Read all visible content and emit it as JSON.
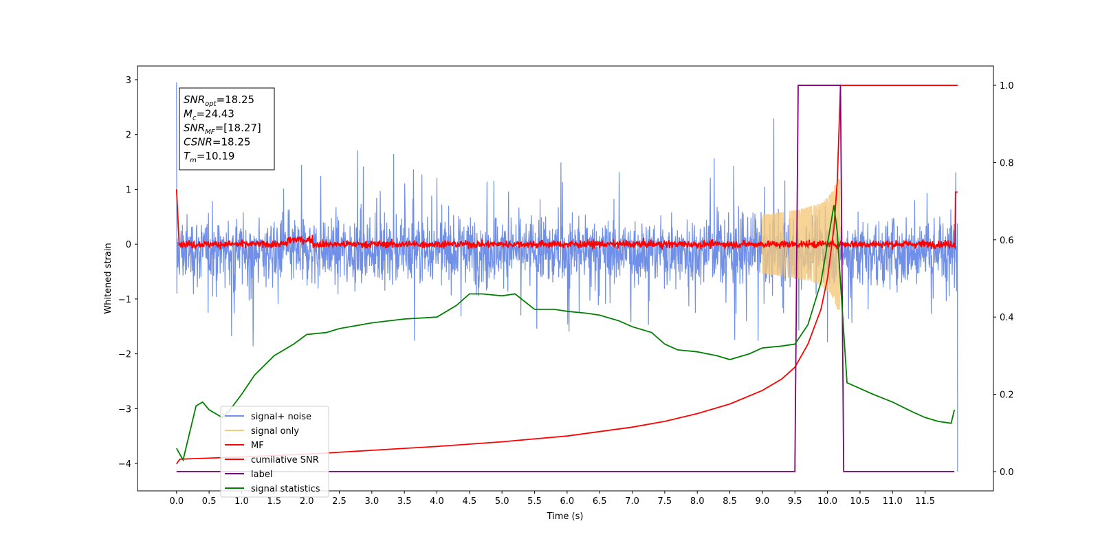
{
  "chart_data": {
    "type": "line",
    "xlabel": "Time (s)",
    "ylabel": "Whitened strain",
    "xlim": [
      -0.6,
      12.55
    ],
    "ylim": [
      -4.5,
      3.25
    ],
    "y2lim": [
      -0.05,
      1.05
    ],
    "x_ticks": [
      "0.0",
      "0.5",
      "1.0",
      "1.5",
      "2.0",
      "2.5",
      "3.0",
      "3.5",
      "4.0",
      "4.5",
      "5.0",
      "5.5",
      "6.0",
      "6.5",
      "7.0",
      "7.5",
      "8.0",
      "8.5",
      "9.0",
      "9.5",
      "10.0",
      "10.5",
      "11.0",
      "11.5"
    ],
    "y_ticks": [
      "3",
      "2",
      "1",
      "0",
      "−1",
      "−2",
      "−3",
      "−4"
    ],
    "y2_ticks": [
      "1.0",
      "0.8",
      "0.6",
      "0.4",
      "0.2",
      "0.0"
    ],
    "grid": false,
    "legend_position": "lower-left",
    "annotation": [
      {
        "label": "SNR",
        "sub": "opt",
        "value": "=18.25"
      },
      {
        "label": "M",
        "sub": "c",
        "value": "=24.43"
      },
      {
        "label": "SNR",
        "sub": "MF",
        "value": "=[18.27]"
      },
      {
        "label": "CSNR",
        "sub": "",
        "value": "=18.25"
      },
      {
        "label": "T",
        "sub": "m",
        "value": "=10.19"
      }
    ],
    "series": [
      {
        "name": "signal+ noise",
        "color": "#6f8fe8",
        "axis": "left",
        "kind": "noise",
        "amplitude": 0.55,
        "duration": [
          0.0,
          12.0
        ]
      },
      {
        "name": "signal only",
        "color": "#f5c87a",
        "axis": "left",
        "kind": "chirp",
        "merger_time": 10.19,
        "peak_amplitude": 1.2
      },
      {
        "name": "MF",
        "color": "#ff0000",
        "axis": "left",
        "kind": "noise",
        "amplitude": 0.05
      },
      {
        "name": "cumilative SNR",
        "color": "#ff0000",
        "axis": "right",
        "x": [
          0.0,
          0.05,
          1.0,
          2.0,
          3.0,
          4.0,
          5.0,
          6.0,
          7.0,
          7.5,
          8.0,
          8.5,
          9.0,
          9.3,
          9.5,
          9.7,
          9.9,
          10.0,
          10.1,
          10.15,
          10.19,
          10.2,
          12.0
        ],
        "y": [
          0.02,
          0.032,
          0.038,
          0.045,
          0.055,
          0.065,
          0.077,
          0.092,
          0.115,
          0.13,
          0.15,
          0.175,
          0.21,
          0.24,
          0.27,
          0.33,
          0.42,
          0.5,
          0.63,
          0.75,
          0.95,
          1.0,
          1.0
        ]
      },
      {
        "name": "label",
        "color": "#800080",
        "axis": "right",
        "x": [
          0.0,
          9.5,
          9.55,
          10.2,
          10.25,
          11.95
        ],
        "y": [
          0.0,
          0.0,
          1.0,
          1.0,
          0.0,
          0.0
        ]
      },
      {
        "name": "signal statistics",
        "color": "#008000",
        "axis": "right",
        "x": [
          0.0,
          0.1,
          0.3,
          0.4,
          0.5,
          0.7,
          0.8,
          1.0,
          1.2,
          1.5,
          1.8,
          2.0,
          2.3,
          2.5,
          3.0,
          3.5,
          4.0,
          4.3,
          4.5,
          4.7,
          5.0,
          5.2,
          5.5,
          5.8,
          6.0,
          6.3,
          6.5,
          6.8,
          7.0,
          7.3,
          7.5,
          7.7,
          8.0,
          8.3,
          8.5,
          8.8,
          9.0,
          9.3,
          9.5,
          9.7,
          9.9,
          10.1,
          10.15,
          10.3,
          10.5,
          10.7,
          11.0,
          11.3,
          11.5,
          11.7,
          11.9,
          11.95
        ],
        "y": [
          0.06,
          0.03,
          0.17,
          0.18,
          0.16,
          0.14,
          0.155,
          0.2,
          0.25,
          0.3,
          0.33,
          0.355,
          0.36,
          0.37,
          0.385,
          0.395,
          0.4,
          0.43,
          0.46,
          0.46,
          0.455,
          0.46,
          0.42,
          0.42,
          0.415,
          0.41,
          0.405,
          0.39,
          0.375,
          0.36,
          0.33,
          0.315,
          0.31,
          0.3,
          0.29,
          0.305,
          0.32,
          0.325,
          0.33,
          0.38,
          0.49,
          0.69,
          0.62,
          0.23,
          0.215,
          0.2,
          0.18,
          0.155,
          0.14,
          0.13,
          0.125,
          0.16
        ]
      }
    ]
  }
}
